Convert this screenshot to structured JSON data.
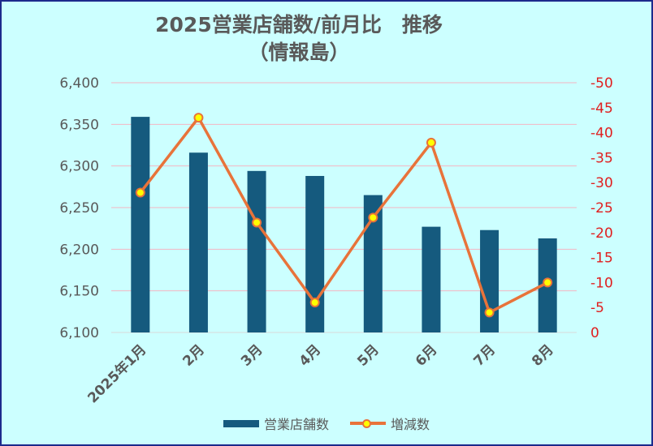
{
  "title": {
    "line1": "2025営業店舗数/前月比　推移",
    "line2": "（情報島）"
  },
  "legend": {
    "bar_label": "営業店舗数",
    "line_label": "増減数"
  },
  "colors": {
    "background": "#ccffff",
    "border": "#1d2a8c",
    "bar": "#155a7e",
    "line": "#e8733a",
    "marker_fill": "#ffff00",
    "left_axis_text": "#595959",
    "right_axis_text": "#e01e1e",
    "gridline": "#f4b6c2"
  },
  "chart_data": {
    "type": "bar",
    "title": "2025営業店舗数/前月比　推移（情報島）",
    "categories": [
      "2025年1月",
      "2月",
      "3月",
      "4月",
      "5月",
      "6月",
      "7月",
      "8月"
    ],
    "series": [
      {
        "name": "営業店舗数",
        "type": "bar",
        "axis": "left",
        "values": [
          6359,
          6316,
          6294,
          6288,
          6265,
          6227,
          6223,
          6213
        ]
      },
      {
        "name": "増減数",
        "type": "line",
        "axis": "right",
        "values": [
          -28,
          -43,
          -22,
          -6,
          -23,
          -38,
          -4,
          -10
        ]
      }
    ],
    "y_left": {
      "range": [
        6100,
        6400
      ],
      "ticks": [
        "6,400",
        "6,350",
        "6,300",
        "6,250",
        "6,200",
        "6,150",
        "6,100"
      ],
      "tick_values": [
        6400,
        6350,
        6300,
        6250,
        6200,
        6150,
        6100
      ]
    },
    "y_right": {
      "range": [
        0,
        -50
      ],
      "reversed": true,
      "ticks": [
        "-50",
        "-45",
        "-40",
        "-35",
        "-30",
        "-25",
        "-20",
        "-15",
        "-10",
        "-5",
        "0"
      ],
      "tick_values": [
        -50,
        -45,
        -40,
        -35,
        -30,
        -25,
        -20,
        -15,
        -10,
        -5,
        0
      ]
    },
    "grid": true,
    "legend_position": "bottom"
  }
}
